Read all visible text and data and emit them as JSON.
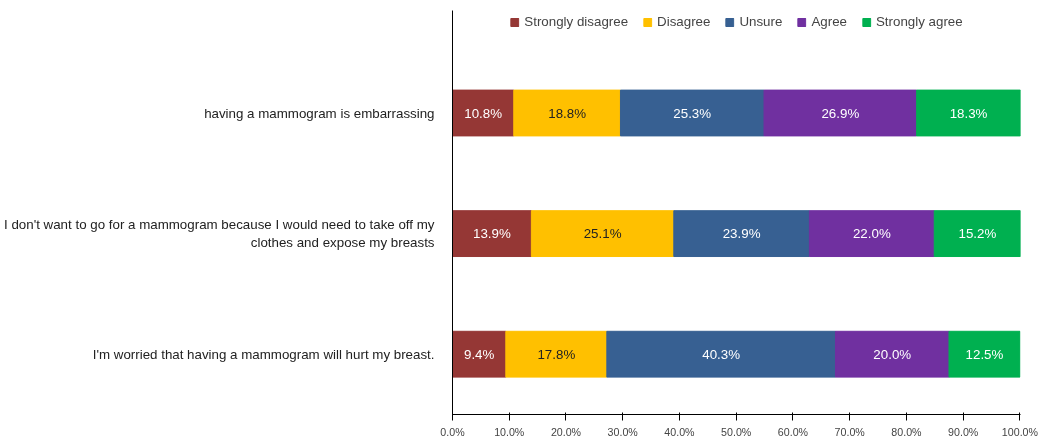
{
  "chart_data": {
    "type": "bar",
    "orientation": "horizontal",
    "stacked": true,
    "legend": "top",
    "grid": false,
    "categories": [
      "having a mammogram is embarrassing",
      "I don't want to go for a mammogram because I would need to take off my clothes and expose my breasts",
      "I'm worried that having a mammogram will hurt my breast."
    ],
    "xlim": [
      0,
      100.1
    ],
    "xticks": [
      {
        "value": 0,
        "label": "0.0%"
      },
      {
        "value": 10,
        "label": "10.0%"
      },
      {
        "value": 20,
        "label": "20.0%"
      },
      {
        "value": 30,
        "label": "30.0%"
      },
      {
        "value": 40,
        "label": "40.0%"
      },
      {
        "value": 50,
        "label": "50.0%"
      },
      {
        "value": 60,
        "label": "60.0%"
      },
      {
        "value": 70,
        "label": "70.0%"
      },
      {
        "value": 80,
        "label": "80.0%"
      },
      {
        "value": 90,
        "label": "90.0%"
      },
      {
        "value": 100,
        "label": "100.0%"
      }
    ],
    "series": [
      {
        "name": "Strongly disagree",
        "color": "#953735",
        "values": [
          10.8,
          13.9,
          9.4
        ],
        "value_labels": [
          "10.8%",
          "13.9%",
          "9.4%"
        ]
      },
      {
        "name": "Disagree",
        "color": "#ffc000",
        "values": [
          18.8,
          25.1,
          17.8
        ],
        "value_labels": [
          "18.8%",
          "25.1%",
          "17.8%"
        ]
      },
      {
        "name": "Unsure",
        "color": "#376092",
        "values": [
          25.3,
          23.9,
          40.3
        ],
        "value_labels": [
          "25.3%",
          "23.9%",
          "40.3%"
        ]
      },
      {
        "name": "Agree",
        "color": "#7030a0",
        "values": [
          26.9,
          22.0,
          20.0
        ],
        "value_labels": [
          "26.9%",
          "22.0%",
          "20.0%"
        ]
      },
      {
        "name": "Strongly agree",
        "color": "#00b050",
        "values": [
          18.3,
          15.2,
          12.5
        ],
        "value_labels": [
          "18.3%",
          "15.2%",
          "12.5%"
        ]
      }
    ]
  }
}
